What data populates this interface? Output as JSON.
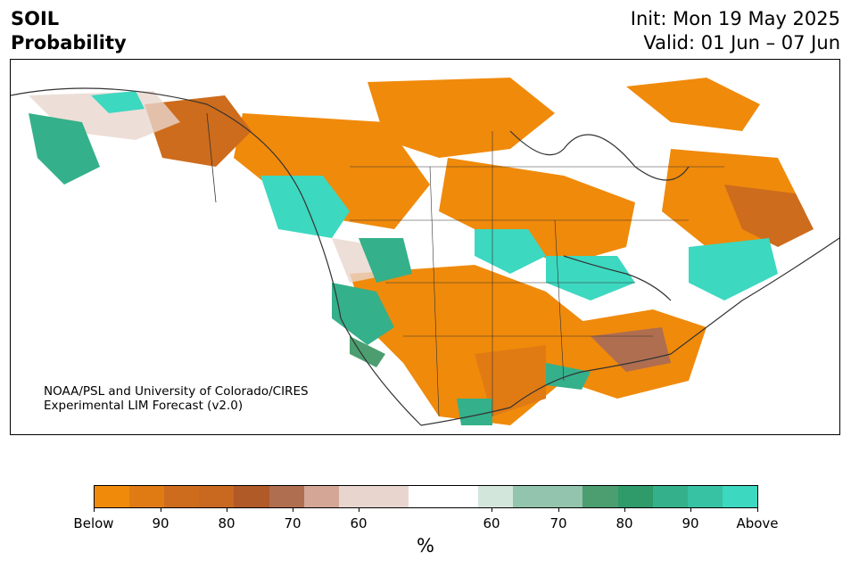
{
  "header": {
    "title_line1": "SOIL",
    "title_line2": "Probability",
    "init": "Init: Mon 19 May 2025",
    "valid": "Valid: 01 Jun – 07 Jun"
  },
  "credit": {
    "line1": "NOAA/PSL and University of Colorado/CIRES",
    "line2": "Experimental LIM Forecast (v2.0)"
  },
  "colorbar": {
    "colors": [
      "#f08a0b",
      "#e07b14",
      "#cd6c1c",
      "#c9681f",
      "#b05a28",
      "#b06e50",
      "#d4a696",
      "#e8d6ce",
      "#ffffff",
      "#d3e6dc",
      "#93c4ad",
      "#4c9e70",
      "#2f9a6a",
      "#34b08a",
      "#37c2a4",
      "#3dd8c0"
    ],
    "tick_labels": [
      "Below",
      "90",
      "80",
      "70",
      "60",
      "60",
      "70",
      "80",
      "90",
      "Above"
    ],
    "unit": "%"
  },
  "map": {
    "colors": {
      "below_strong": "#f08a0b",
      "below_mid": "#cd6c1c",
      "below_weak": "#b06e50",
      "below_light": "#e8d6ce",
      "above_light": "#d3e6dc",
      "above_mid": "#4c9e70",
      "above_strong": "#3dd8c0",
      "above_teal": "#34b08a",
      "coast": "#333333"
    }
  }
}
